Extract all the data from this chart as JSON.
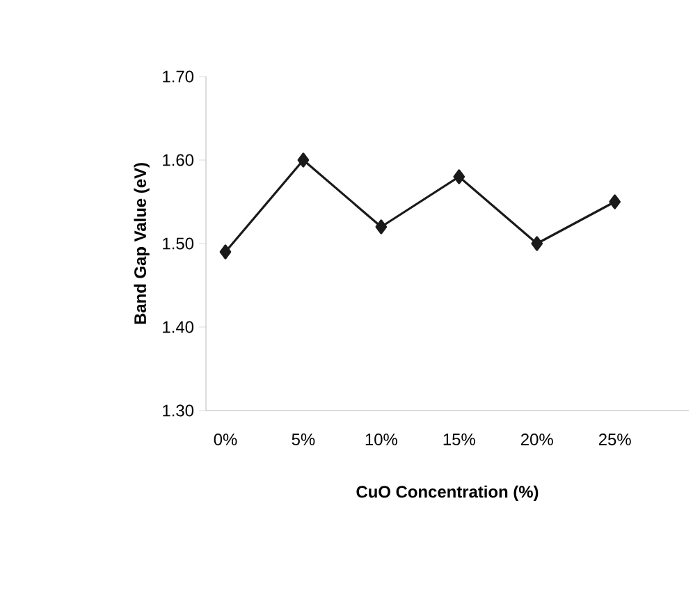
{
  "chart_data": {
    "type": "line",
    "xlabel": "CuO Concentration (%)",
    "ylabel": "Band Gap Value (eV)",
    "categories": [
      "0%",
      "5%",
      "10%",
      "15%",
      "20%",
      "25%"
    ],
    "values": [
      1.49,
      1.6,
      1.52,
      1.58,
      1.5,
      1.55
    ],
    "color": "#1a1a1a",
    "marker": "diamond",
    "line_style": "solid",
    "ylim": [
      1.3,
      1.7
    ],
    "yticks": [
      {
        "value": 1.3,
        "label": "1.30"
      },
      {
        "value": 1.4,
        "label": "1.40"
      },
      {
        "value": 1.5,
        "label": "1.50"
      },
      {
        "value": 1.6,
        "label": "1.60"
      },
      {
        "value": 1.7,
        "label": "1.70"
      }
    ]
  }
}
